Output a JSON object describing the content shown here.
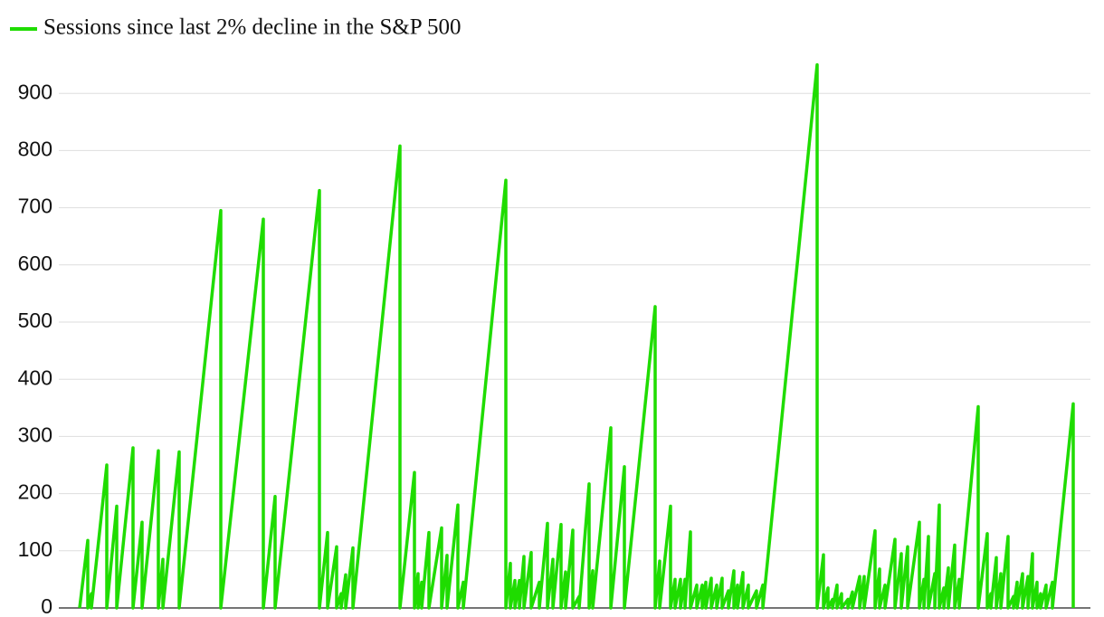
{
  "chart_data": {
    "type": "line",
    "series": [
      {
        "name": "Sessions since last 2% decline in the S&P 500",
        "color": "#1fdc00",
        "x": [
          0,
          135,
          135,
          195,
          195,
          450,
          450,
          615,
          615,
          885,
          885,
          1035,
          1035,
          1305,
          1305,
          1380,
          1380,
          1650,
          1650,
          2340,
          2340,
          3045,
          3045,
          3240,
          3240,
          3975,
          3975,
          4110,
          4110,
          4260,
          4260,
          4335,
          4335,
          4410,
          4410,
          4530,
          4530,
          5310,
          5310,
          5550,
          5550,
          5610,
          5610,
          5670,
          5670,
          5790,
          5790,
          6000,
          6000,
          6090,
          6090,
          6270,
          6270,
          6360,
          6360,
          7065,
          7065,
          7140,
          7140,
          7215,
          7215,
          7290,
          7290,
          7365,
          7365,
          7485,
          7485,
          7620,
          7620,
          7755,
          7755,
          7845,
          7845,
          7980,
          7980,
          8055,
          8055,
          8175,
          8175,
          8280,
          8280,
          8445,
          8445,
          8505,
          8505,
          8805,
          8805,
          9030,
          9030,
          9540,
          9540,
          9615,
          9615,
          9795,
          9795,
          9870,
          9870,
          9960,
          9960,
          10035,
          10035,
          10125,
          10125,
          10230,
          10230,
          10320,
          10320,
          10380,
          10380,
          10470,
          10470,
          10560,
          10560,
          10650,
          10650,
          10755,
          10755,
          10845,
          10845,
          10905,
          10905,
          10995,
          10995,
          11085,
          11085,
          11220,
          11220,
          11325,
          11325,
          12225,
          12225,
          12330,
          12330,
          12405,
          12405,
          12480,
          12480,
          12555,
          12555,
          12630,
          12630,
          12735,
          12735,
          12810,
          12810,
          12930,
          12930,
          13005,
          13005,
          13185,
          13185,
          13260,
          13260,
          13350,
          13350,
          13515,
          13515,
          13620,
          13620,
          13725,
          13725,
          13920,
          13920,
          13995,
          13995,
          14070,
          14070,
          14175,
          14175,
          14250,
          14250,
          14325,
          14325,
          14400,
          14400,
          14505,
          14505,
          14580,
          14580,
          14895,
          14895,
          15045,
          15045,
          15105,
          15105,
          15195,
          15195,
          15270,
          15270,
          15390,
          15390,
          15480,
          15480,
          15540,
          15540,
          15630,
          15630,
          15720,
          15720,
          15795,
          15795,
          15870,
          15870,
          15930,
          15930,
          16020,
          16020,
          16125,
          16125,
          16470,
          16470
        ],
        "values": [
          0,
          118,
          0,
          25,
          0,
          250,
          0,
          178,
          0,
          280,
          0,
          150,
          0,
          275,
          0,
          85,
          0,
          273,
          0,
          695,
          0,
          680,
          0,
          195,
          0,
          730,
          0,
          132,
          0,
          107,
          0,
          25,
          0,
          58,
          0,
          105,
          0,
          808,
          0,
          237,
          0,
          60,
          0,
          45,
          0,
          132,
          0,
          140,
          0,
          92,
          0,
          180,
          0,
          45,
          0,
          748,
          0,
          78,
          0,
          48,
          0,
          48,
          0,
          90,
          0,
          97,
          0,
          45,
          0,
          148,
          0,
          85,
          0,
          146,
          0,
          63,
          0,
          136,
          0,
          20,
          0,
          217,
          0,
          65,
          0,
          315,
          0,
          247,
          0,
          527,
          0,
          82,
          0,
          178,
          0,
          50,
          0,
          50,
          0,
          50,
          0,
          133,
          0,
          40,
          0,
          40,
          0,
          45,
          0,
          52,
          0,
          40,
          0,
          52,
          0,
          30,
          0,
          65,
          0,
          40,
          0,
          62,
          0,
          40,
          0,
          30,
          0,
          40,
          0,
          950,
          0,
          93,
          0,
          35,
          0,
          15,
          0,
          40,
          0,
          25,
          0,
          15,
          0,
          28,
          0,
          55,
          0,
          55,
          0,
          135,
          0,
          68,
          0,
          40,
          0,
          120,
          0,
          95,
          0,
          107,
          0,
          150,
          0,
          50,
          0,
          125,
          0,
          60,
          0,
          180,
          0,
          35,
          0,
          70,
          0,
          110,
          0,
          50,
          0,
          352,
          0,
          130,
          0,
          25,
          0,
          88,
          0,
          60,
          0,
          125,
          0,
          20,
          0,
          45,
          0,
          60,
          0,
          55,
          0,
          95,
          0,
          45,
          0,
          25,
          0,
          40,
          0,
          45,
          0,
          357,
          0
        ]
      }
    ],
    "xlim": [
      -345,
      16755
    ],
    "ylim": [
      0,
      960
    ],
    "yticks": [
      0,
      100,
      200,
      300,
      400,
      500,
      600,
      700,
      800,
      900
    ],
    "grid": true,
    "legend": "top-left"
  }
}
